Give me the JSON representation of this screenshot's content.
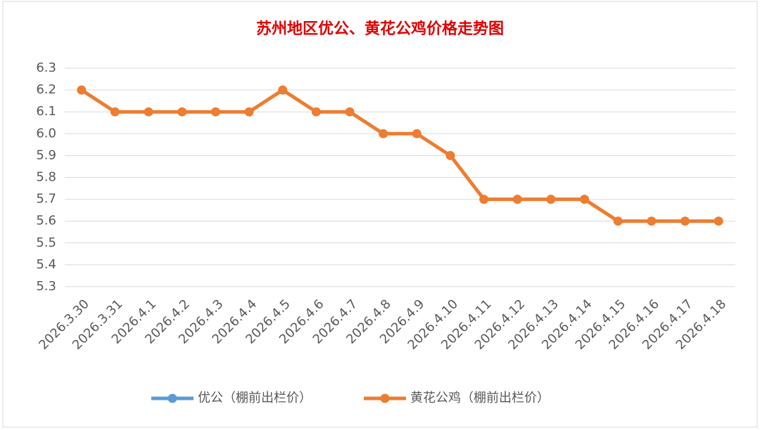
{
  "chart_data": {
    "type": "line",
    "title": "苏州地区优公、黄花公鸡价格走势图",
    "categories": [
      "2026.3.30",
      "2026.3.31",
      "2026.4.1",
      "2026.4.2",
      "2026.4.3",
      "2026.4.4",
      "2026.4.5",
      "2026.4.6",
      "2026.4.7",
      "2026.4.8",
      "2026.4.9",
      "2026.4.10",
      "2026.4.11",
      "2026.4.12",
      "2026.4.13",
      "2026.4.14",
      "2026.4.15",
      "2026.4.16",
      "2026.4.17",
      "2026.4.18"
    ],
    "series": [
      {
        "name": "优公（棚前出栏价）",
        "color": "#5b9bd5",
        "values": [
          null,
          null,
          null,
          null,
          null,
          null,
          null,
          null,
          null,
          null,
          null,
          null,
          null,
          null,
          null,
          null,
          null,
          null,
          null,
          null
        ]
      },
      {
        "name": "黄花公鸡（棚前出栏价）",
        "color": "#ed7d31",
        "values": [
          6.2,
          6.1,
          6.1,
          6.1,
          6.1,
          6.1,
          6.2,
          6.1,
          6.1,
          6.0,
          6.0,
          5.9,
          5.7,
          5.7,
          5.7,
          5.7,
          5.6,
          5.6,
          5.6,
          5.6
        ]
      }
    ],
    "ylim": [
      5.3,
      6.3
    ],
    "yticks": [
      5.3,
      5.4,
      5.5,
      5.6,
      5.7,
      5.8,
      5.9,
      {
        "value": 6,
        "label": "6.0"
      },
      6.1,
      6.2,
      6.3
    ],
    "grid": true,
    "legend": "bottom"
  }
}
